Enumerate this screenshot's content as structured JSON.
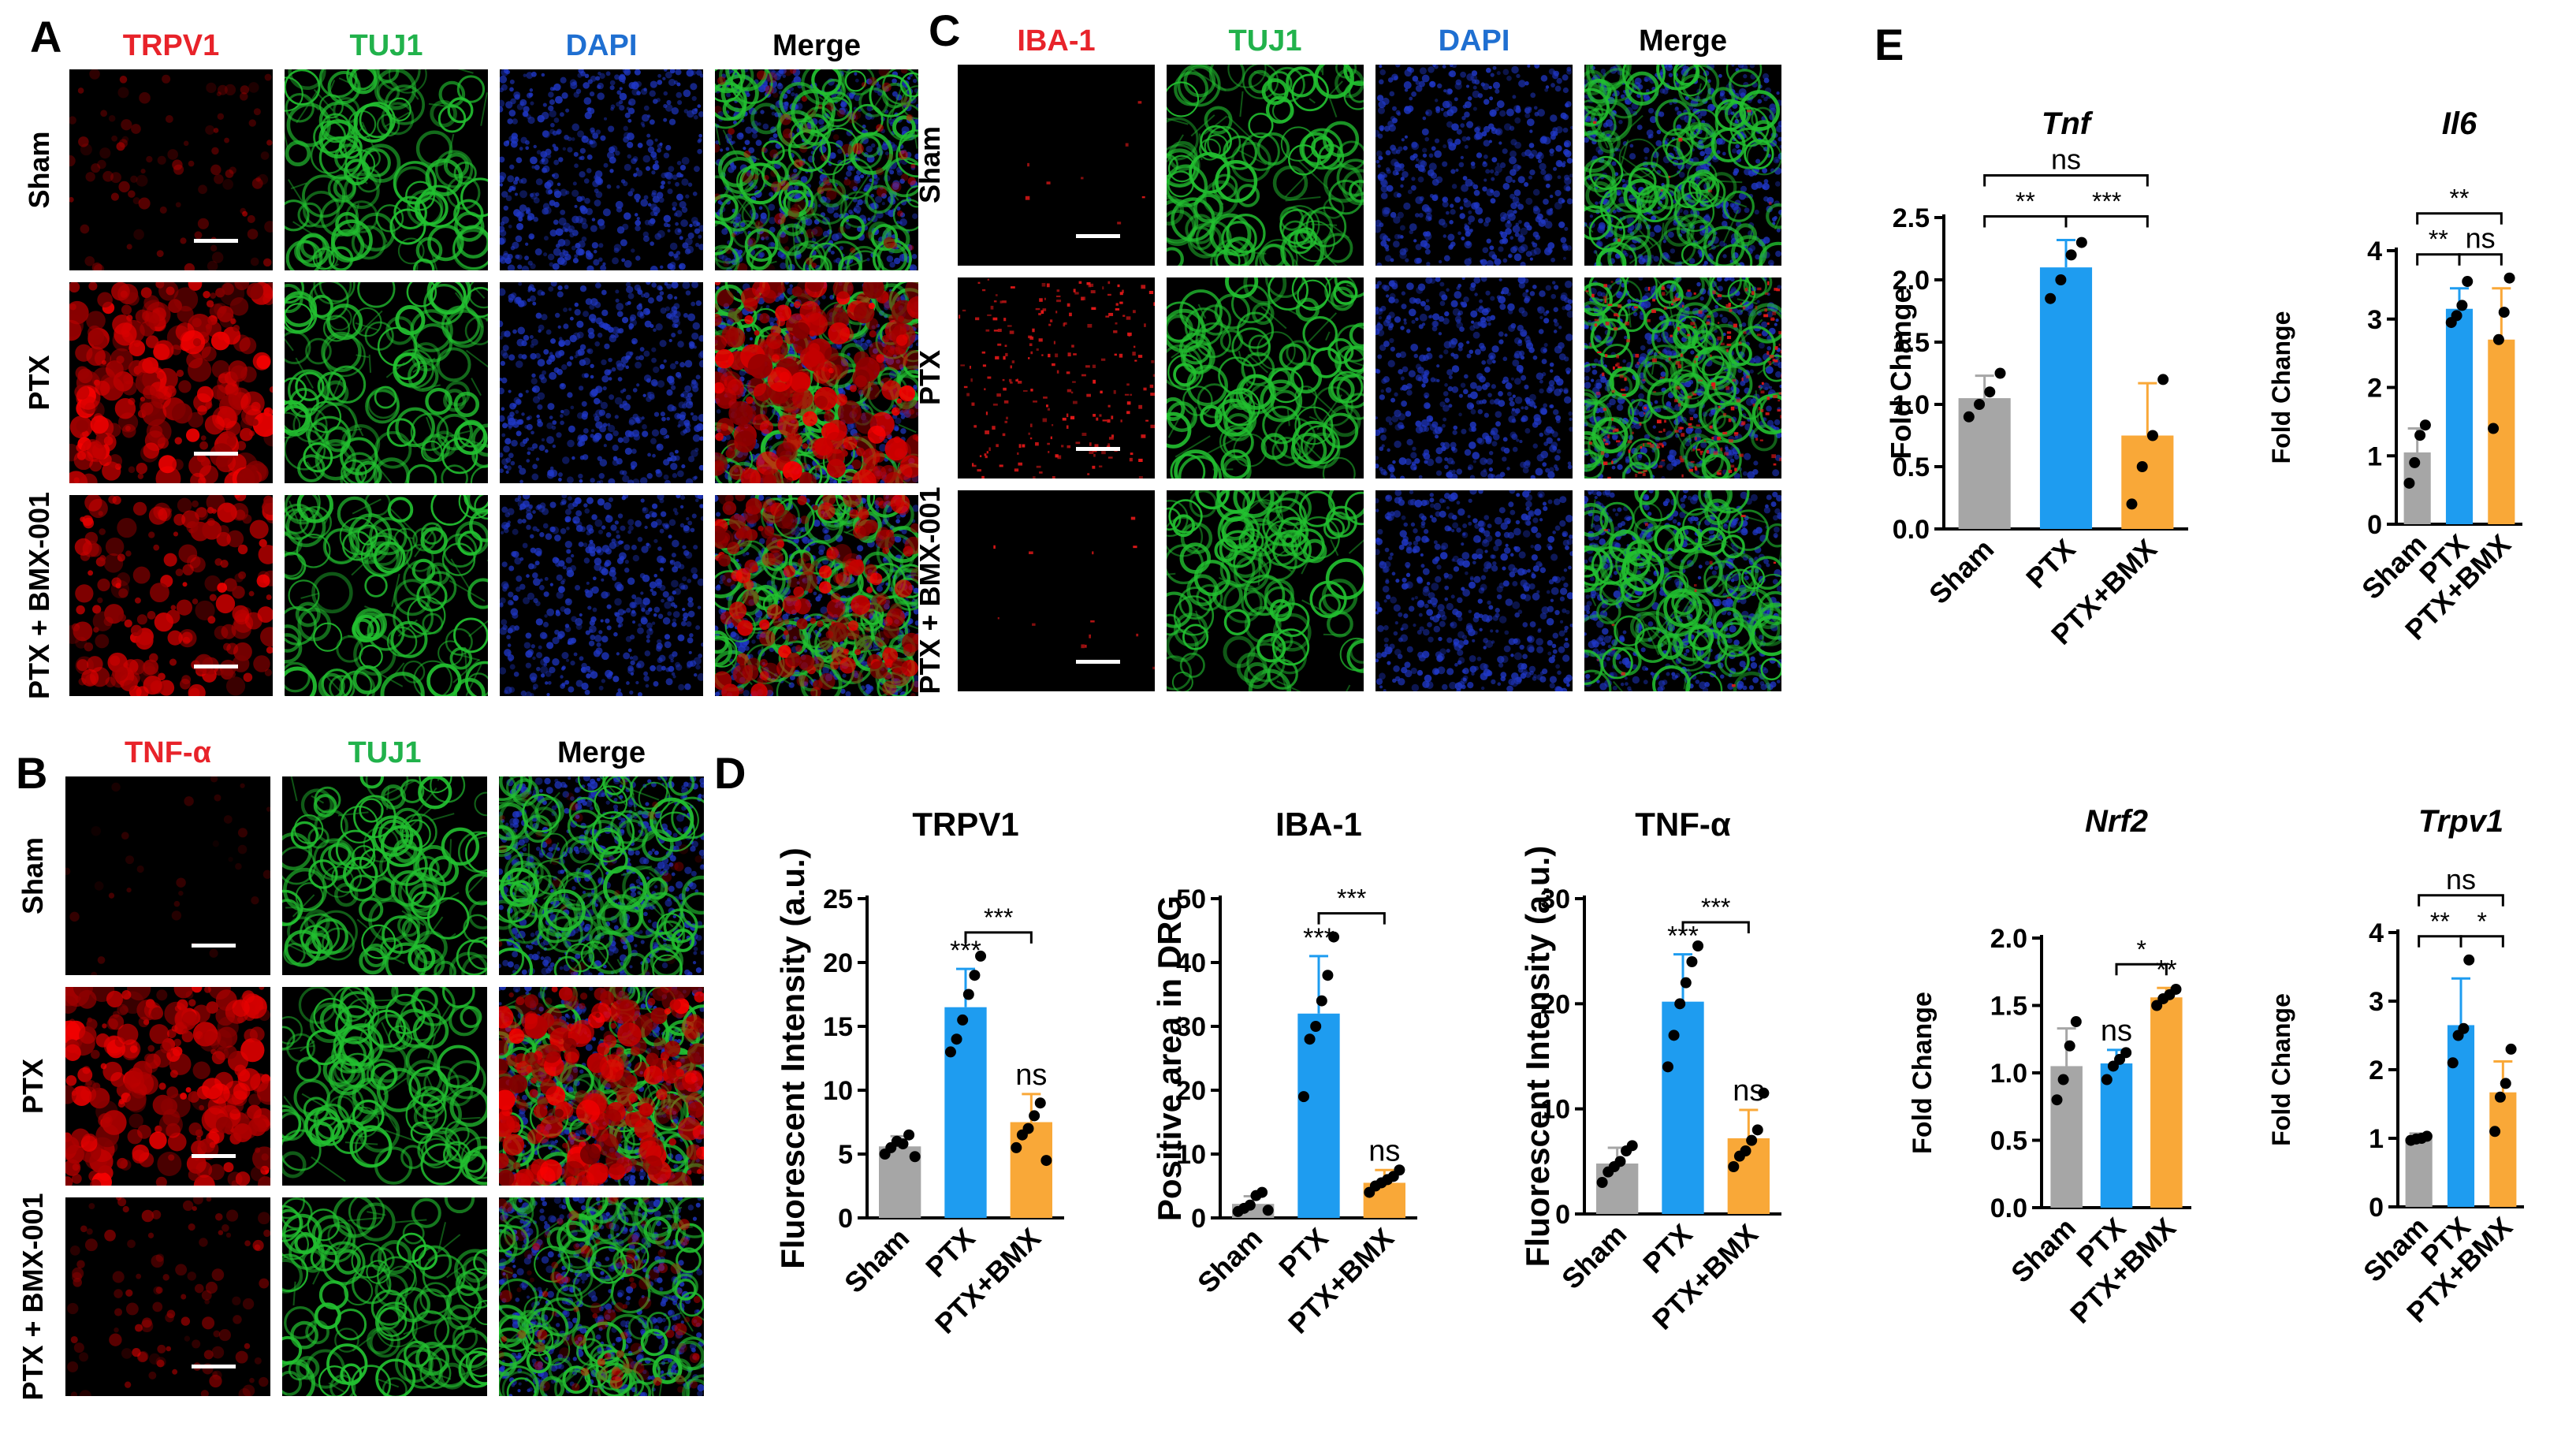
{
  "panels": {
    "A": {
      "letter": "A",
      "channels": [
        {
          "label": "TRPV1",
          "color": "#e8232a"
        },
        {
          "label": "TUJ1",
          "color": "#21b24b"
        },
        {
          "label": "DAPI",
          "color": "#1f6fd1"
        },
        {
          "label": "Merge",
          "color": "#000000"
        }
      ],
      "rows": [
        "Sham",
        "PTX",
        "PTX + BMX-001"
      ]
    },
    "B": {
      "letter": "B",
      "channels": [
        {
          "label": "TNF-α",
          "color": "#e8232a"
        },
        {
          "label": "TUJ1",
          "color": "#21b24b"
        },
        {
          "label": "Merge",
          "color": "#000000"
        }
      ],
      "rows": [
        "Sham",
        "PTX",
        "PTX + BMX-001"
      ]
    },
    "C": {
      "letter": "C",
      "channels": [
        {
          "label": "IBA-1",
          "color": "#e8232a"
        },
        {
          "label": "TUJ1",
          "color": "#21b24b"
        },
        {
          "label": "DAPI",
          "color": "#1f6fd1"
        },
        {
          "label": "Merge",
          "color": "#000000"
        }
      ],
      "rows": [
        "Sham",
        "PTX",
        "PTX + BMX-001"
      ]
    },
    "D": {
      "letter": "D"
    },
    "E": {
      "letter": "E"
    }
  },
  "colors": {
    "sham": "#a6a6a6",
    "ptx": "#1e9cf0",
    "bmx": "#f9a838"
  },
  "chart_data": [
    {
      "id": "trpv1",
      "type": "bar",
      "title": "TRPV1",
      "title_italic": false,
      "ylabel": "Fluorescent Intensity (a.u.)",
      "categories": [
        "Sham",
        "PTX",
        "PTX+BMX"
      ],
      "values": [
        5.6,
        16.5,
        7.5
      ],
      "errors": [
        0.8,
        3.0,
        2.2
      ],
      "ylim": [
        0,
        25
      ],
      "yticks": [
        "0",
        "5",
        "10",
        "15",
        "20",
        "25"
      ],
      "points": [
        [
          5.0,
          5.5,
          6.0,
          5.8,
          6.5,
          4.8
        ],
        [
          13.0,
          14.0,
          15.5,
          17.5,
          19.0,
          20.5
        ],
        [
          5.5,
          6.5,
          7.0,
          8.0,
          9.0,
          4.5
        ]
      ],
      "above": [
        "",
        "***",
        "ns"
      ],
      "brackets": [
        {
          "from": 1,
          "to": 2,
          "label": "***"
        }
      ]
    },
    {
      "id": "iba1",
      "type": "bar",
      "title": "IBA-1",
      "title_italic": false,
      "ylabel": "Positive area in DRG",
      "categories": [
        "Sham",
        "PTX",
        "PTX+BMX"
      ],
      "values": [
        2.2,
        32.0,
        5.5
      ],
      "errors": [
        1.2,
        9.0,
        2.0
      ],
      "ylim": [
        0,
        50
      ],
      "yticks": [
        "0",
        "10",
        "20",
        "30",
        "40",
        "50"
      ],
      "points": [
        [
          1.0,
          1.5,
          2.0,
          3.5,
          4.0,
          1.2
        ],
        [
          19.0,
          28.0,
          30.0,
          34.0,
          38.0,
          44.0
        ],
        [
          4.0,
          5.0,
          5.5,
          6.0,
          6.5,
          7.5
        ]
      ],
      "above": [
        "",
        "***",
        "ns"
      ],
      "brackets": [
        {
          "from": 1,
          "to": 2,
          "label": "***"
        }
      ]
    },
    {
      "id": "tnfa",
      "type": "bar",
      "title": "TNF-α",
      "title_italic": false,
      "ylabel": "Fluorescent Intensity (a.u.)",
      "categories": [
        "Sham",
        "PTX",
        "PTX+BMX"
      ],
      "values": [
        4.8,
        20.2,
        7.2
      ],
      "errors": [
        1.5,
        4.5,
        2.7
      ],
      "ylim": [
        0,
        30
      ],
      "yticks": [
        "0",
        "10",
        "20",
        "30"
      ],
      "points": [
        [
          3.0,
          4.0,
          4.5,
          5.0,
          6.0,
          6.5
        ],
        [
          14.0,
          17.0,
          20.0,
          22.0,
          24.0,
          25.5
        ],
        [
          4.5,
          5.5,
          6.0,
          7.0,
          8.0,
          11.5
        ]
      ],
      "above": [
        "",
        "***",
        "ns"
      ],
      "brackets": [
        {
          "from": 1,
          "to": 2,
          "label": "***"
        }
      ]
    },
    {
      "id": "tnf",
      "type": "bar",
      "title": "Tnf",
      "title_italic": true,
      "ylabel": "Fold Change",
      "categories": [
        "Sham",
        "PTX",
        "PTX+BMX"
      ],
      "values": [
        1.05,
        2.1,
        0.75
      ],
      "errors": [
        0.18,
        0.22,
        0.42
      ],
      "ylim": [
        0,
        2.5
      ],
      "yticks": [
        "0.0",
        "0.5",
        "1.0",
        "1.5",
        "2.0",
        "2.5"
      ],
      "points": [
        [
          0.9,
          1.0,
          1.1,
          1.25
        ],
        [
          1.85,
          2.0,
          2.2,
          2.3
        ],
        [
          0.2,
          0.5,
          0.75,
          1.2
        ]
      ],
      "above": [
        "",
        "",
        ""
      ],
      "brackets": [
        {
          "from": 0,
          "to": 1,
          "label": "**"
        },
        {
          "from": 1,
          "to": 2,
          "label": "***"
        },
        {
          "from": 0,
          "to": 2,
          "label": "ns"
        }
      ]
    },
    {
      "id": "il6",
      "type": "bar",
      "title": "Il6",
      "title_italic": true,
      "ylabel": "Fold Change",
      "categories": [
        "Sham",
        "PTX",
        "PTX+BMX"
      ],
      "values": [
        1.05,
        3.15,
        2.7
      ],
      "errors": [
        0.35,
        0.3,
        0.75
      ],
      "ylim": [
        0,
        4
      ],
      "yticks": [
        "0",
        "1",
        "2",
        "3",
        "4"
      ],
      "points": [
        [
          0.6,
          0.9,
          1.3,
          1.45
        ],
        [
          2.95,
          3.05,
          3.2,
          3.55
        ],
        [
          1.4,
          2.7,
          3.1,
          3.6
        ]
      ],
      "above": [
        "",
        "",
        ""
      ],
      "brackets": [
        {
          "from": 0,
          "to": 1,
          "label": "**"
        },
        {
          "from": 1,
          "to": 2,
          "label": "ns"
        },
        {
          "from": 0,
          "to": 2,
          "label": "**"
        }
      ]
    },
    {
      "id": "nrf2",
      "type": "bar",
      "title": "Nrf2",
      "title_italic": true,
      "ylabel": "Fold Change",
      "categories": [
        "Sham",
        "PTX",
        "PTX+BMX"
      ],
      "values": [
        1.05,
        1.07,
        1.56
      ],
      "errors": [
        0.28,
        0.1,
        0.07
      ],
      "ylim": [
        0,
        2
      ],
      "yticks": [
        "0.0",
        "0.5",
        "1.0",
        "1.5",
        "2.0"
      ],
      "points": [
        [
          0.8,
          0.95,
          1.2,
          1.38
        ],
        [
          0.95,
          1.05,
          1.1,
          1.15
        ],
        [
          1.5,
          1.55,
          1.58,
          1.62
        ]
      ],
      "above": [
        "",
        "ns",
        "**"
      ],
      "brackets": [
        {
          "from": 1,
          "to": 2,
          "label": "*"
        }
      ]
    },
    {
      "id": "trpv1-gene",
      "type": "bar",
      "title": "Trpv1",
      "title_italic": true,
      "ylabel": "Fold Change",
      "categories": [
        "Sham",
        "PTX",
        "PTX+BMX"
      ],
      "values": [
        1.0,
        2.65,
        1.67
      ],
      "errors": [
        0.07,
        0.68,
        0.45
      ],
      "ylim": [
        0,
        4
      ],
      "yticks": [
        "0",
        "1",
        "2",
        "3",
        "4"
      ],
      "points": [
        [
          0.97,
          0.99,
          1.0,
          1.03
        ],
        [
          2.1,
          2.5,
          2.6,
          3.6
        ],
        [
          1.1,
          1.6,
          1.8,
          2.3
        ]
      ],
      "above": [
        "",
        "",
        ""
      ],
      "brackets": [
        {
          "from": 0,
          "to": 1,
          "label": "**"
        },
        {
          "from": 1,
          "to": 2,
          "label": "*"
        },
        {
          "from": 0,
          "to": 2,
          "label": "ns"
        }
      ]
    }
  ]
}
